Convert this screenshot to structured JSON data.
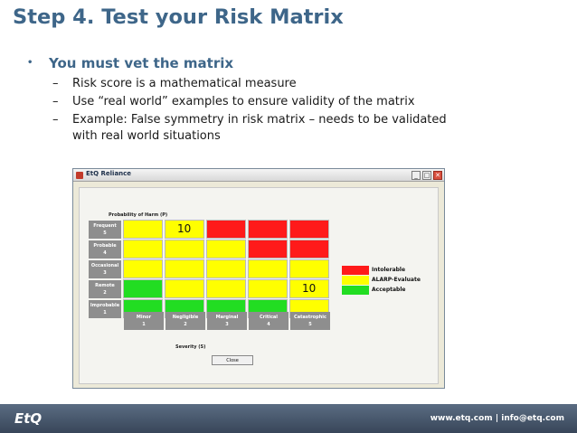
{
  "title": "Step 4. Test your Risk Matrix",
  "bullet": {
    "marker": "•",
    "text": "You must vet the matrix"
  },
  "sub_bullets": [
    {
      "dash": "–",
      "text": "Risk score is a mathematical measure"
    },
    {
      "dash": "–",
      "text": "Use “real world” examples to ensure validity of the matrix"
    },
    {
      "dash": "–",
      "text": "Example:  False symmetry in risk matrix – needs to be validated"
    },
    {
      "dash": "",
      "text": "with real world situations"
    }
  ],
  "window": {
    "title": "EtQ Reliance",
    "controls": {
      "minimize": "_",
      "maximize": "□",
      "close": "✕"
    },
    "probability_title": "Probability of Harm (P)",
    "rows": [
      {
        "name": "Frequent",
        "num": "5"
      },
      {
        "name": "Probable",
        "num": "4"
      },
      {
        "name": "Occasional",
        "num": "3"
      },
      {
        "name": "Remote",
        "num": "2"
      },
      {
        "name": "Improbable",
        "num": "1"
      }
    ],
    "severity_title": "Severity (S)",
    "columns": [
      {
        "name": "Minor",
        "num": "1"
      },
      {
        "name": "Negligible",
        "num": "2"
      },
      {
        "name": "Marginal",
        "num": "3"
      },
      {
        "name": "Critical",
        "num": "4"
      },
      {
        "name": "Catastrophic",
        "num": "5"
      }
    ],
    "matrix_levels": [
      [
        "alarp",
        "alarp",
        "intolerable",
        "intolerable",
        "intolerable"
      ],
      [
        "alarp",
        "alarp",
        "alarp",
        "intolerable",
        "intolerable"
      ],
      [
        "alarp",
        "alarp",
        "alarp",
        "alarp",
        "alarp"
      ],
      [
        "acceptable",
        "alarp",
        "alarp",
        "alarp",
        "alarp"
      ],
      [
        "acceptable",
        "acceptable",
        "acceptable",
        "acceptable",
        "alarp"
      ]
    ],
    "cell_values": [
      {
        "row": 0,
        "col": 1,
        "text": "10"
      },
      {
        "row": 3,
        "col": 4,
        "text": "10"
      }
    ],
    "legend": [
      {
        "key": "intolerable",
        "label": "Intolerable",
        "color": "#ff1a1a"
      },
      {
        "key": "alarp",
        "label": "ALARP-Evaluate",
        "color": "#ffff00"
      },
      {
        "key": "acceptable",
        "label": "Acceptable",
        "color": "#22dd22"
      }
    ],
    "close_label": "Close"
  },
  "footer": {
    "logo": "EtQ",
    "contact": "www.etq.com  |  info@etq.com"
  }
}
